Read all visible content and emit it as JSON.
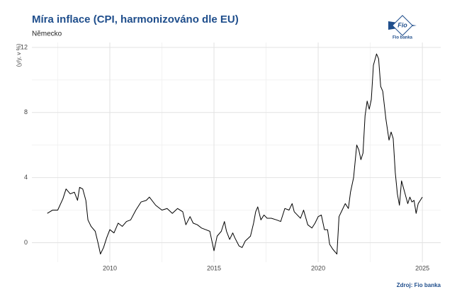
{
  "chart_data": {
    "type": "line",
    "title": "Míra inflace (CPI, harmonizováno dle EU)",
    "subtitle": "Německo",
    "y_label": "(y/y, v %)",
    "source": "Zdroj: Fio banka",
    "logo": {
      "mark": "Fio",
      "text": "Fio banka"
    },
    "xlim": [
      2006.26,
      2025.88
    ],
    "xticks": [
      2010,
      2015,
      2020,
      2025
    ],
    "minor_xticks": [
      2007.5,
      2012.5,
      2017.5,
      2022.5
    ],
    "ylim": [
      -1.2,
      12.3
    ],
    "yticks": [
      0,
      4,
      8,
      12
    ],
    "minor_yticks": [
      2,
      6,
      10
    ],
    "grid": true,
    "series": [
      {
        "color": "#000000",
        "x": [
          2007.0,
          2007.25,
          2007.5,
          2007.75,
          2007.9,
          2008.1,
          2008.3,
          2008.45,
          2008.55,
          2008.7,
          2008.85,
          2008.95,
          2009.1,
          2009.3,
          2009.45,
          2009.55,
          2009.7,
          2009.85,
          2010.0,
          2010.2,
          2010.4,
          2010.6,
          2010.8,
          2011.0,
          2011.25,
          2011.5,
          2011.75,
          2011.9,
          2012.2,
          2012.5,
          2012.75,
          2013.0,
          2013.25,
          2013.5,
          2013.65,
          2013.85,
          2014.0,
          2014.2,
          2014.4,
          2014.6,
          2014.8,
          2015.0,
          2015.15,
          2015.35,
          2015.5,
          2015.6,
          2015.75,
          2015.9,
          2016.0,
          2016.2,
          2016.35,
          2016.5,
          2016.75,
          2016.9,
          2017.0,
          2017.1,
          2017.25,
          2017.4,
          2017.55,
          2017.75,
          2018.0,
          2018.2,
          2018.4,
          2018.6,
          2018.75,
          2018.85,
          2019.0,
          2019.15,
          2019.3,
          2019.5,
          2019.7,
          2019.85,
          2020.0,
          2020.15,
          2020.3,
          2020.45,
          2020.55,
          2020.7,
          2020.9,
          2021.0,
          2021.15,
          2021.3,
          2021.45,
          2021.55,
          2021.7,
          2021.85,
          2021.95,
          2022.05,
          2022.15,
          2022.25,
          2022.35,
          2022.45,
          2022.55,
          2022.65,
          2022.8,
          2022.9,
          2023.0,
          2023.1,
          2023.25,
          2023.4,
          2023.5,
          2023.6,
          2023.7,
          2023.8,
          2023.9,
          2024.0,
          2024.15,
          2024.3,
          2024.4,
          2024.5,
          2024.6,
          2024.7,
          2024.8,
          2024.9,
          2025.0
        ],
        "values": [
          1.8,
          2.0,
          2.0,
          2.7,
          3.3,
          3.0,
          3.1,
          2.6,
          3.4,
          3.3,
          2.6,
          1.4,
          1.0,
          0.7,
          -0.1,
          -0.7,
          -0.3,
          0.3,
          0.8,
          0.6,
          1.2,
          1.0,
          1.3,
          1.4,
          2.0,
          2.5,
          2.6,
          2.8,
          2.3,
          2.0,
          2.1,
          1.8,
          2.1,
          1.9,
          1.1,
          1.6,
          1.2,
          1.1,
          0.9,
          0.8,
          0.7,
          -0.5,
          0.4,
          0.7,
          1.3,
          0.7,
          0.2,
          0.6,
          0.3,
          -0.2,
          -0.3,
          0.1,
          0.4,
          1.2,
          1.9,
          2.2,
          1.4,
          1.7,
          1.5,
          1.5,
          1.4,
          1.3,
          2.1,
          2.0,
          2.4,
          1.9,
          1.7,
          1.5,
          2.0,
          1.1,
          0.9,
          1.2,
          1.6,
          1.7,
          0.8,
          0.8,
          -0.1,
          -0.4,
          -0.7,
          1.6,
          2.0,
          2.4,
          2.1,
          3.1,
          4.0,
          6.0,
          5.7,
          5.1,
          5.5,
          7.8,
          8.7,
          8.2,
          8.8,
          10.9,
          11.6,
          11.3,
          9.6,
          9.3,
          7.6,
          6.3,
          6.8,
          6.4,
          4.3,
          3.0,
          2.3,
          3.8,
          3.1,
          2.4,
          2.8,
          2.5,
          2.6,
          1.8,
          2.4,
          2.6,
          2.8
        ]
      }
    ]
  }
}
